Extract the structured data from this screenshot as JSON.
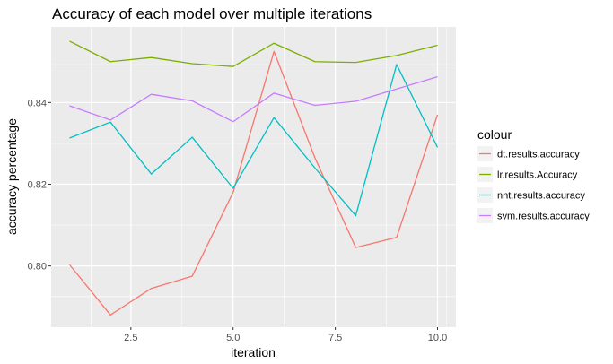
{
  "chart_data": {
    "type": "line",
    "title": "Accuracy of each model over multiple iterations",
    "xlabel": "iteration",
    "ylabel": "accuracy percentage",
    "xlim": [
      0.55,
      10.45
    ],
    "ylim": [
      0.785,
      0.8585
    ],
    "x_ticks": [
      2.5,
      5.0,
      7.5,
      10.0
    ],
    "x_tick_labels": [
      "2.5",
      "5.0",
      "7.5",
      "10.0"
    ],
    "y_ticks": [
      0.8,
      0.82,
      0.84
    ],
    "y_tick_labels": [
      "0.80",
      "0.82",
      "0.84"
    ],
    "x": [
      1,
      2,
      3,
      4,
      5,
      6,
      7,
      8,
      9,
      10
    ],
    "grid": true,
    "panel_background": "#ebebeb",
    "legend": {
      "title": "colour",
      "position": "right"
    },
    "series": [
      {
        "name": "dt.results.accuracy",
        "color": "#F8766D",
        "values": [
          0.8003,
          0.788,
          0.7945,
          0.7975,
          0.818,
          0.8525,
          0.8265,
          0.8045,
          0.807,
          0.837
        ]
      },
      {
        "name": "lr.results.Accuracy",
        "color": "#7CAE00",
        "values": [
          0.855,
          0.85,
          0.851,
          0.8495,
          0.8488,
          0.8545,
          0.85,
          0.8498,
          0.8515,
          0.854
        ]
      },
      {
        "name": "nnt.results.accuracy",
        "color": "#00BFC4",
        "values": [
          0.8313,
          0.8352,
          0.8225,
          0.8315,
          0.819,
          0.8363,
          0.824,
          0.8123,
          0.8493,
          0.829
        ]
      },
      {
        "name": "svm.results.accuracy",
        "color": "#C77CFF",
        "values": [
          0.8392,
          0.8357,
          0.842,
          0.8404,
          0.8353,
          0.8423,
          0.8393,
          0.8403,
          0.8433,
          0.8463
        ]
      }
    ]
  }
}
